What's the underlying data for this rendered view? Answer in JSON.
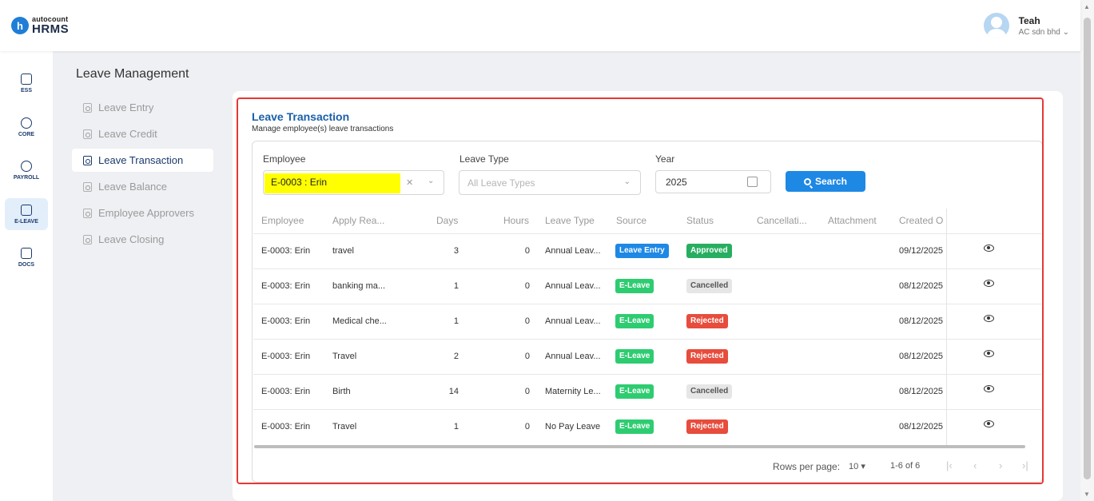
{
  "header": {
    "logo_top": "autocount",
    "logo_bottom": "HRMS",
    "logo_letter": "h",
    "user_name": "Teah",
    "company": "AC sdn bhd"
  },
  "rail": {
    "items": [
      {
        "label": "ESS",
        "icon": "id-card-icon",
        "active": false
      },
      {
        "label": "CORE",
        "icon": "cube-icon",
        "active": false
      },
      {
        "label": "PAYROLL",
        "icon": "dollar-icon",
        "active": false
      },
      {
        "label": "E-LEAVE",
        "icon": "calendar-icon",
        "active": true
      },
      {
        "label": "DOCS",
        "icon": "document-chart-icon",
        "active": false
      }
    ]
  },
  "subnav": {
    "title": "Leave Management",
    "items": [
      {
        "label": "Leave Entry",
        "active": false
      },
      {
        "label": "Leave Credit",
        "active": false
      },
      {
        "label": "Leave Transaction",
        "active": true
      },
      {
        "label": "Leave Balance",
        "active": false
      },
      {
        "label": "Employee Approvers",
        "active": false
      },
      {
        "label": "Leave Closing",
        "active": false
      }
    ]
  },
  "card": {
    "title": "Leave Transaction",
    "subtitle": "Manage employee(s) leave transactions"
  },
  "filters": {
    "employee_label": "Employee",
    "employee_value": "E-0003 : Erin",
    "leave_type_label": "Leave Type",
    "leave_type_placeholder": "All Leave Types",
    "year_label": "Year",
    "year_value": "2025",
    "search_label": "Search"
  },
  "table": {
    "headers": [
      "Employee",
      "Apply Rea...",
      "Days",
      "Hours",
      "Leave Type",
      "Source",
      "Status",
      "Cancellati...",
      "Attachment",
      "Created O"
    ],
    "rows": [
      {
        "employee": "E-0003: Erin",
        "reason": "travel",
        "days": "3",
        "hours": "0",
        "leave_type": "Annual Leav...",
        "source": "Leave Entry",
        "status": "Approved",
        "created": "09/12/2025"
      },
      {
        "employee": "E-0003: Erin",
        "reason": "banking ma...",
        "days": "1",
        "hours": "0",
        "leave_type": "Annual Leav...",
        "source": "E-Leave",
        "status": "Cancelled",
        "created": "08/12/2025"
      },
      {
        "employee": "E-0003: Erin",
        "reason": "Medical che...",
        "days": "1",
        "hours": "0",
        "leave_type": "Annual Leav...",
        "source": "E-Leave",
        "status": "Rejected",
        "created": "08/12/2025"
      },
      {
        "employee": "E-0003: Erin",
        "reason": "Travel",
        "days": "2",
        "hours": "0",
        "leave_type": "Annual Leav...",
        "source": "E-Leave",
        "status": "Rejected",
        "created": "08/12/2025"
      },
      {
        "employee": "E-0003: Erin",
        "reason": "Birth",
        "days": "14",
        "hours": "0",
        "leave_type": "Maternity Le...",
        "source": "E-Leave",
        "status": "Cancelled",
        "created": "08/12/2025"
      },
      {
        "employee": "E-0003: Erin",
        "reason": "Travel",
        "days": "1",
        "hours": "0",
        "leave_type": "No Pay Leave",
        "source": "E-Leave",
        "status": "Rejected",
        "created": "08/12/2025"
      }
    ]
  },
  "pagination": {
    "rows_per_page_label": "Rows per page:",
    "rows_per_page": "10",
    "range": "1-6 of 6"
  },
  "colors": {
    "source_leave_entry": "#1e88e5",
    "source_e_leave": "#2ecc71",
    "status_approved": "#27ae60",
    "status_cancelled": "#e6e6e6",
    "status_rejected": "#e74c3c",
    "highlight": "#ffff00",
    "annotation_box": "#e53935"
  }
}
